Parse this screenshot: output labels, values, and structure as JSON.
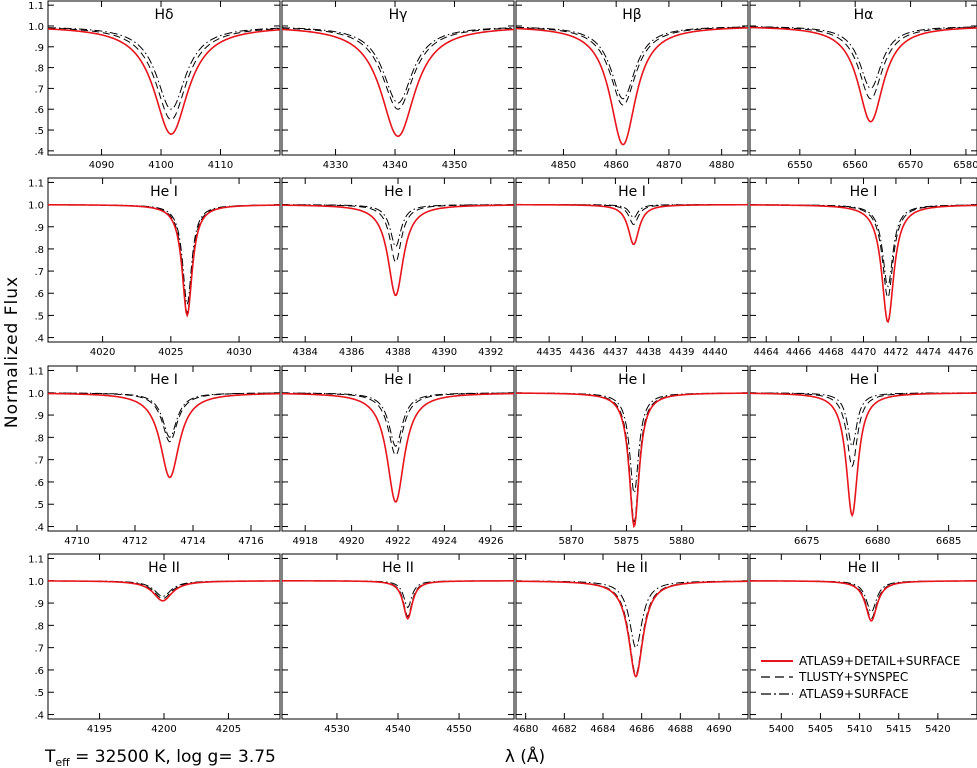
{
  "figure": {
    "ylabel": "Normalized Flux",
    "xlabel": "λ (Å)",
    "params": {
      "teff_label": "T",
      "teff_sub": "eff",
      "teff_rest": " = 32500 K,  log g= 3.75"
    },
    "legend": [
      {
        "name": "ATLAS9+DETAIL+SURFACE",
        "color": "#e8141b",
        "style": "solid"
      },
      {
        "name": "TLUSTY+SYNSPEC",
        "color": "#000000",
        "style": "dashed"
      },
      {
        "name": "ATLAS9+SURFACE",
        "color": "#000000",
        "style": "dashdot"
      }
    ],
    "ytick_labels": [
      "1.1",
      "1.0",
      ".9",
      ".8",
      ".7",
      ".6",
      ".5",
      ".4"
    ],
    "yticks": [
      1.1,
      1.0,
      0.9,
      0.8,
      0.7,
      0.6,
      0.5,
      0.4
    ],
    "ylim": [
      0.38,
      1.12
    ]
  },
  "chart_data": [
    {
      "type": "line",
      "title": "Hδ",
      "xlim": [
        4081,
        4120
      ],
      "xticks": [
        4090,
        4100,
        4110
      ],
      "tick_labels": [
        "4090",
        "4100",
        "4110"
      ],
      "center": 4101.7,
      "series": [
        {
          "name": "ATLAS9+DETAIL+SURFACE",
          "depth": 0.52,
          "width": 3.5
        },
        {
          "name": "TLUSTY+SYNSPEC",
          "depth": 0.45,
          "width": 3.2
        },
        {
          "name": "ATLAS9+SURFACE",
          "depth": 0.4,
          "width": 3.0
        }
      ]
    },
    {
      "type": "line",
      "title": "Hγ",
      "xlim": [
        4321,
        4360
      ],
      "xticks": [
        4330,
        4340,
        4350
      ],
      "tick_labels": [
        "4330",
        "4340",
        "4350"
      ],
      "center": 4340.5,
      "series": [
        {
          "name": "ATLAS9+DETAIL+SURFACE",
          "depth": 0.53,
          "width": 3.5
        },
        {
          "name": "TLUSTY+SYNSPEC",
          "depth": 0.4,
          "width": 3.2
        },
        {
          "name": "ATLAS9+SURFACE",
          "depth": 0.37,
          "width": 3.0
        }
      ]
    },
    {
      "type": "line",
      "title": "Hβ",
      "xlim": [
        4841,
        4885
      ],
      "xticks": [
        4850,
        4860,
        4870,
        4880
      ],
      "tick_labels": [
        "4850",
        "4860",
        "4870",
        "4880"
      ],
      "center": 4861.3,
      "series": [
        {
          "name": "ATLAS9+DETAIL+SURFACE",
          "depth": 0.57,
          "width": 3.0
        },
        {
          "name": "TLUSTY+SYNSPEC",
          "depth": 0.38,
          "width": 3.0
        },
        {
          "name": "ATLAS9+SURFACE",
          "depth": 0.35,
          "width": 2.8
        }
      ]
    },
    {
      "type": "line",
      "title": "Hα",
      "xlim": [
        6541,
        6582
      ],
      "xticks": [
        6550,
        6560,
        6570,
        6580
      ],
      "tick_labels": [
        "6550",
        "6560",
        "6570",
        "6580"
      ],
      "center": 6562.8,
      "series": [
        {
          "name": "ATLAS9+DETAIL+SURFACE",
          "depth": 0.46,
          "width": 2.8
        },
        {
          "name": "TLUSTY+SYNSPEC",
          "depth": 0.35,
          "width": 2.6
        },
        {
          "name": "ATLAS9+SURFACE",
          "depth": 0.3,
          "width": 2.4
        }
      ]
    },
    {
      "type": "line",
      "title": "He I",
      "xlim": [
        4016,
        4033
      ],
      "xticks": [
        4020,
        4025,
        4030
      ],
      "tick_labels": [
        "4020",
        "4025",
        "4030"
      ],
      "center": 4026.2,
      "series": [
        {
          "name": "ATLAS9+DETAIL+SURFACE",
          "depth": 0.5,
          "width": 0.45
        },
        {
          "name": "TLUSTY+SYNSPEC",
          "depth": 0.49,
          "width": 0.42
        },
        {
          "name": "ATLAS9+SURFACE",
          "depth": 0.45,
          "width": 0.4
        }
      ]
    },
    {
      "type": "line",
      "title": "He I",
      "xlim": [
        4383,
        4393
      ],
      "xticks": [
        4384,
        4386,
        4388,
        4390,
        4392
      ],
      "tick_labels": [
        "4384",
        "4386",
        "4388",
        "4390",
        "4392"
      ],
      "center": 4387.9,
      "series": [
        {
          "name": "ATLAS9+DETAIL+SURFACE",
          "depth": 0.41,
          "width": 0.4
        },
        {
          "name": "TLUSTY+SYNSPEC",
          "depth": 0.26,
          "width": 0.3
        },
        {
          "name": "ATLAS9+SURFACE",
          "depth": 0.19,
          "width": 0.28
        }
      ]
    },
    {
      "type": "line",
      "title": "He I",
      "xlim": [
        4434,
        4441
      ],
      "xticks": [
        4435,
        4436,
        4437,
        4438,
        4439,
        4440
      ],
      "tick_labels": [
        "4435",
        "4436",
        "4437",
        "4438",
        "4439",
        "4440"
      ],
      "center": 4437.55,
      "series": [
        {
          "name": "ATLAS9+DETAIL+SURFACE",
          "depth": 0.18,
          "width": 0.2
        },
        {
          "name": "TLUSTY+SYNSPEC",
          "depth": 0.09,
          "width": 0.17
        },
        {
          "name": "ATLAS9+SURFACE",
          "depth": 0.06,
          "width": 0.15
        }
      ]
    },
    {
      "type": "line",
      "title": "He I",
      "xlim": [
        4463,
        4477
      ],
      "xticks": [
        4464,
        4466,
        4468,
        4470,
        4472,
        4474,
        4476
      ],
      "tick_labels": [
        "4464",
        "4466",
        "4468",
        "4470",
        "4472",
        "4474",
        "4476"
      ],
      "center": 4471.5,
      "series": [
        {
          "name": "ATLAS9+DETAIL+SURFACE",
          "depth": 0.53,
          "width": 0.45
        },
        {
          "name": "TLUSTY+SYNSPEC",
          "depth": 0.42,
          "width": 0.4
        },
        {
          "name": "ATLAS9+SURFACE",
          "depth": 0.37,
          "width": 0.38
        }
      ]
    },
    {
      "type": "line",
      "title": "He I",
      "xlim": [
        4709,
        4717
      ],
      "xticks": [
        4710,
        4712,
        4714,
        4716
      ],
      "tick_labels": [
        "4710",
        "4712",
        "4714",
        "4716"
      ],
      "center": 4713.2,
      "series": [
        {
          "name": "ATLAS9+DETAIL+SURFACE",
          "depth": 0.38,
          "width": 0.4
        },
        {
          "name": "TLUSTY+SYNSPEC",
          "depth": 0.22,
          "width": 0.32
        },
        {
          "name": "ATLAS9+SURFACE",
          "depth": 0.2,
          "width": 0.3
        }
      ]
    },
    {
      "type": "line",
      "title": "He I",
      "xlim": [
        4917,
        4927
      ],
      "xticks": [
        4918,
        4920,
        4922,
        4924,
        4926
      ],
      "tick_labels": [
        "4918",
        "4920",
        "4922",
        "4924",
        "4926"
      ],
      "center": 4921.9,
      "series": [
        {
          "name": "ATLAS9+DETAIL+SURFACE",
          "depth": 0.49,
          "width": 0.45
        },
        {
          "name": "TLUSTY+SYNSPEC",
          "depth": 0.28,
          "width": 0.38
        },
        {
          "name": "ATLAS9+SURFACE",
          "depth": 0.24,
          "width": 0.35
        }
      ]
    },
    {
      "type": "line",
      "title": "He I",
      "xlim": [
        5865,
        5886
      ],
      "xticks": [
        5870,
        5875,
        5880
      ],
      "tick_labels": [
        "5870",
        "5875",
        "5880"
      ],
      "center": 5875.7,
      "series": [
        {
          "name": "ATLAS9+DETAIL+SURFACE",
          "depth": 0.6,
          "width": 0.55
        },
        {
          "name": "TLUSTY+SYNSPEC",
          "depth": 0.58,
          "width": 0.52
        },
        {
          "name": "ATLAS9+SURFACE",
          "depth": 0.45,
          "width": 0.5
        }
      ]
    },
    {
      "type": "line",
      "title": "He I",
      "xlim": [
        6671,
        6687
      ],
      "xticks": [
        6675,
        6680,
        6685
      ],
      "tick_labels": [
        "6675",
        "6680",
        "6685"
      ],
      "center": 6678.2,
      "series": [
        {
          "name": "ATLAS9+DETAIL+SURFACE",
          "depth": 0.55,
          "width": 0.5
        },
        {
          "name": "TLUSTY+SYNSPEC",
          "depth": 0.33,
          "width": 0.45
        },
        {
          "name": "ATLAS9+SURFACE",
          "depth": 0.24,
          "width": 0.4
        }
      ]
    },
    {
      "type": "line",
      "title": "He II",
      "xlim": [
        4191,
        4209
      ],
      "xticks": [
        4195,
        4200,
        4205
      ],
      "tick_labels": [
        "4195",
        "4200",
        "4205"
      ],
      "center": 4199.9,
      "series": [
        {
          "name": "ATLAS9+DETAIL+SURFACE",
          "depth": 0.09,
          "width": 0.9
        },
        {
          "name": "TLUSTY+SYNSPEC",
          "depth": 0.08,
          "width": 0.85
        },
        {
          "name": "ATLAS9+SURFACE",
          "depth": 0.07,
          "width": 0.8
        }
      ]
    },
    {
      "type": "line",
      "title": "He II",
      "xlim": [
        4521,
        4559
      ],
      "xticks": [
        4530,
        4540,
        4550
      ],
      "tick_labels": [
        "4530",
        "4540",
        "4550"
      ],
      "center": 4541.6,
      "series": [
        {
          "name": "ATLAS9+DETAIL+SURFACE",
          "depth": 0.17,
          "width": 0.9
        },
        {
          "name": "TLUSTY+SYNSPEC",
          "depth": 0.16,
          "width": 0.85
        },
        {
          "name": "ATLAS9+SURFACE",
          "depth": 0.12,
          "width": 0.8
        }
      ]
    },
    {
      "type": "line",
      "title": "He II",
      "xlim": [
        4679.5,
        4691.5
      ],
      "xticks": [
        4680,
        4682,
        4684,
        4686,
        4688,
        4690
      ],
      "tick_labels": [
        "4680",
        "4682",
        "4684",
        "4686",
        "4688",
        "4690"
      ],
      "center": 4685.7,
      "series": [
        {
          "name": "ATLAS9+DETAIL+SURFACE",
          "depth": 0.43,
          "width": 0.45
        },
        {
          "name": "TLUSTY+SYNSPEC",
          "depth": 0.42,
          "width": 0.43
        },
        {
          "name": "ATLAS9+SURFACE",
          "depth": 0.3,
          "width": 0.4
        }
      ]
    },
    {
      "type": "line",
      "title": "He II",
      "xlim": [
        5396,
        5425
      ],
      "xticks": [
        5400,
        5405,
        5410,
        5415,
        5420
      ],
      "tick_labels": [
        "5400",
        "5405",
        "5410",
        "5415",
        "5420"
      ],
      "center": 5411.5,
      "series": [
        {
          "name": "ATLAS9+DETAIL+SURFACE",
          "depth": 0.18,
          "width": 0.9
        },
        {
          "name": "TLUSTY+SYNSPEC",
          "depth": 0.17,
          "width": 0.85
        },
        {
          "name": "ATLAS9+SURFACE",
          "depth": 0.14,
          "width": 0.8
        }
      ]
    }
  ]
}
